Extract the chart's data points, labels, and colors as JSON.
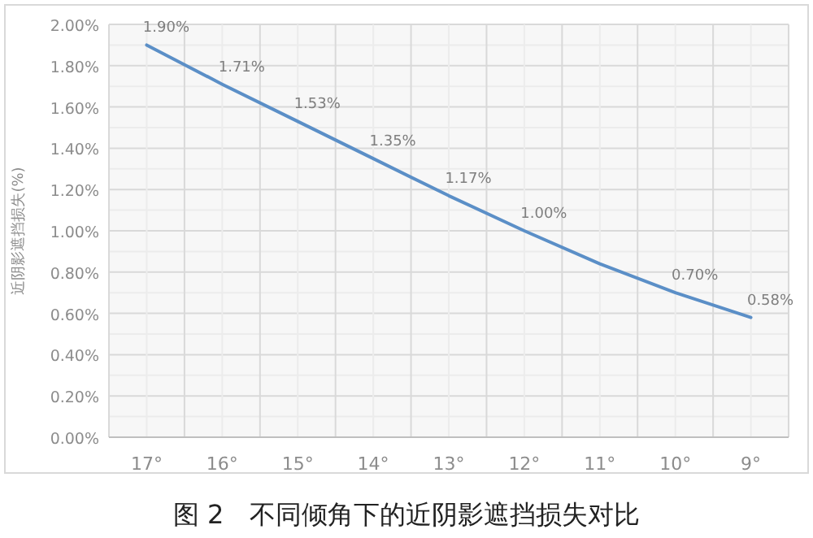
{
  "chart_data": {
    "type": "line",
    "ylabel": "近阴影遮挡损失(%)",
    "annotations": [
      "图 2　不同倾角下的近阴影遮挡损失对比"
    ],
    "categories": [
      "17°",
      "16°",
      "15°",
      "14°",
      "13°",
      "12°",
      "11°",
      "10°",
      "9°"
    ],
    "series": [
      {
        "color": "#5b8fc7",
        "values": [
          1.9,
          1.71,
          1.53,
          1.35,
          1.17,
          1.0,
          0.84,
          0.7,
          0.58
        ],
        "value_labels": [
          "1.90%",
          "1.71%",
          "1.53%",
          "1.35%",
          "1.17%",
          "1.00%",
          null,
          "0.70%",
          "0.58%"
        ]
      }
    ],
    "ylim": [
      0,
      2.0
    ],
    "yticks": [
      {
        "value": 0,
        "label": "0.00%"
      },
      {
        "value": 0.2,
        "label": "0.20%"
      },
      {
        "value": 0.4,
        "label": "0.40%"
      },
      {
        "value": 0.6,
        "label": "0.60%"
      },
      {
        "value": 0.8,
        "label": "0.80%"
      },
      {
        "value": 1.0,
        "label": "1.00%"
      },
      {
        "value": 1.2,
        "label": "1.20%"
      },
      {
        "value": 1.4,
        "label": "1.40%"
      },
      {
        "value": 1.6,
        "label": "1.60%"
      },
      {
        "value": 1.8,
        "label": "1.80%"
      },
      {
        "value": 2.0,
        "label": "2.00%"
      }
    ],
    "grid": true,
    "marker": "none",
    "line_style": "solid"
  }
}
